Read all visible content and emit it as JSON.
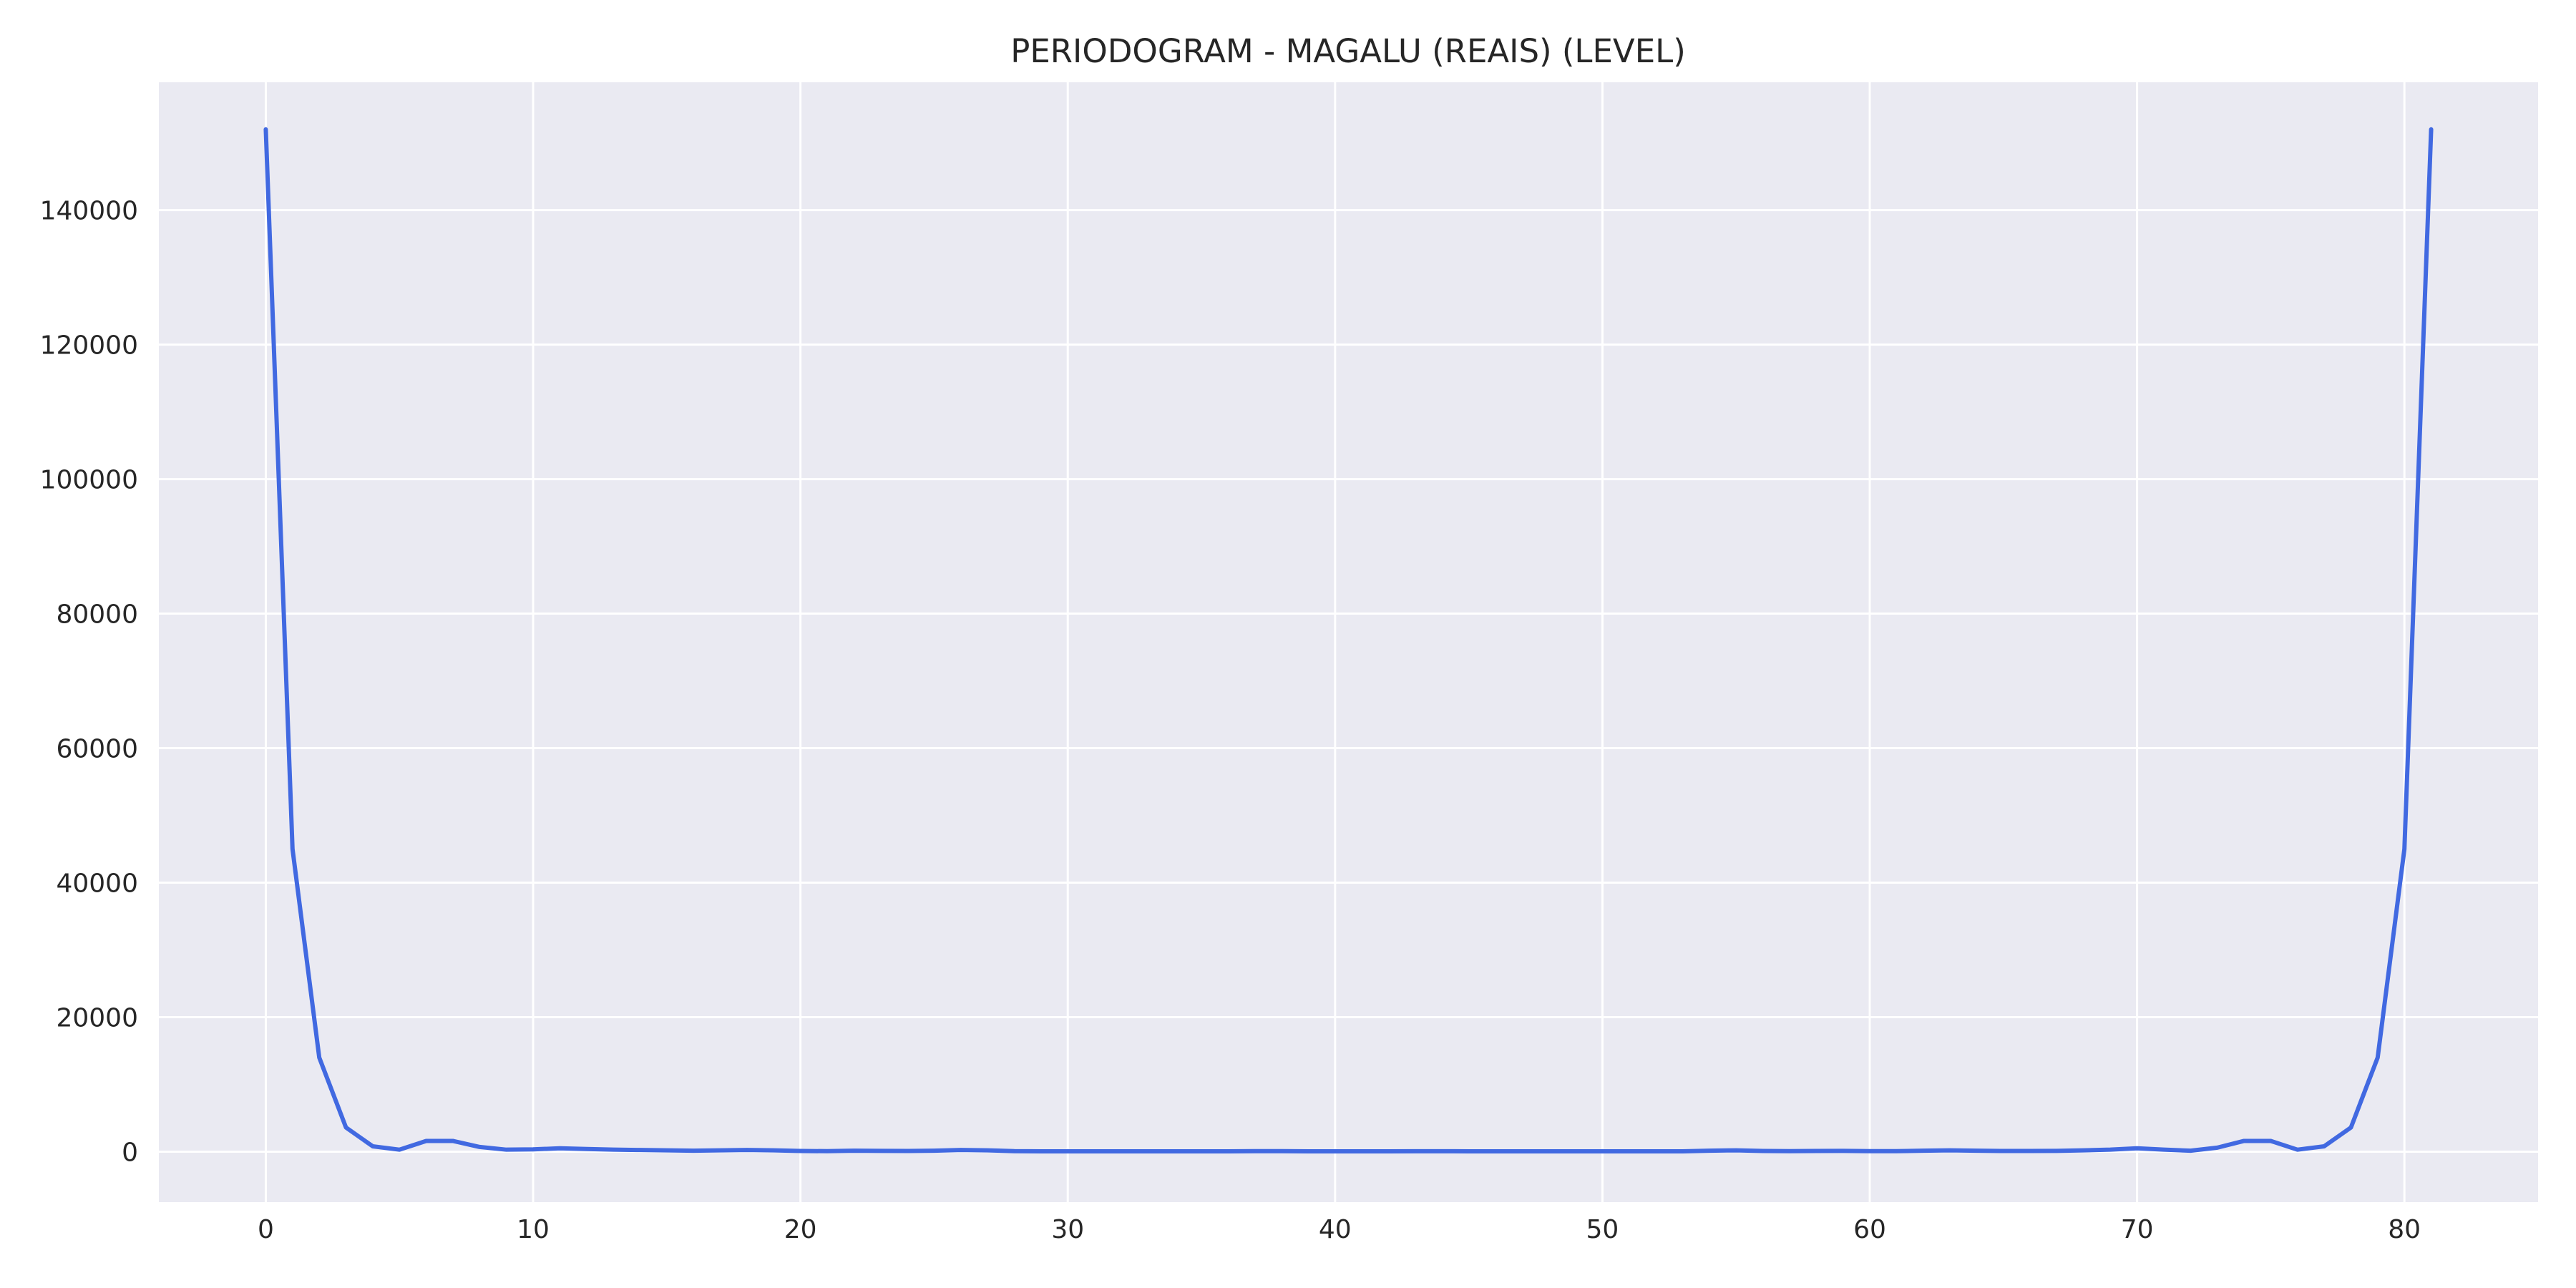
{
  "chart_data": {
    "type": "line",
    "title": "PERIODOGRAM - MAGALU (REAIS) (LEVEL)",
    "xlabel": "",
    "ylabel": "",
    "xlim": [
      -4,
      85
    ],
    "ylim": [
      -7500,
      159000
    ],
    "xticks": [
      0,
      10,
      20,
      30,
      40,
      50,
      60,
      70,
      80
    ],
    "yticks": [
      0,
      20000,
      40000,
      60000,
      80000,
      100000,
      120000,
      140000
    ],
    "grid": true,
    "background_color": "#EAEAF2",
    "grid_color": "#FFFFFF",
    "series": [
      {
        "color": "#4169E1",
        "x": [
          0,
          1,
          2,
          3,
          4,
          5,
          6,
          7,
          8,
          9,
          10,
          11,
          12,
          13,
          14,
          15,
          16,
          17,
          18,
          19,
          20,
          21,
          22,
          23,
          24,
          25,
          26,
          27,
          28,
          29,
          30,
          31,
          32,
          33,
          34,
          35,
          36,
          37,
          38,
          39,
          40,
          41,
          42,
          43,
          44,
          45,
          46,
          47,
          48,
          49,
          50,
          51,
          52,
          53,
          54,
          55,
          56,
          57,
          58,
          59,
          60,
          61,
          62,
          63,
          64,
          65,
          66,
          67,
          68,
          69,
          70,
          71,
          72,
          73,
          74,
          75,
          76,
          77,
          78,
          79,
          80,
          81
        ],
        "values": [
          152000,
          45000,
          14000,
          3600,
          800,
          300,
          1600,
          1600,
          700,
          300,
          350,
          500,
          400,
          300,
          250,
          200,
          150,
          200,
          250,
          200,
          100,
          80,
          150,
          120,
          100,
          150,
          250,
          200,
          80,
          60,
          60,
          50,
          50,
          60,
          60,
          50,
          60,
          80,
          80,
          60,
          60,
          60,
          60,
          70,
          70,
          60,
          60,
          60,
          60,
          60,
          60,
          50,
          50,
          50,
          150,
          200,
          100,
          80,
          100,
          120,
          80,
          80,
          150,
          200,
          150,
          100,
          100,
          120,
          200,
          300,
          500,
          300,
          150,
          600,
          1600,
          1600,
          300,
          800,
          3600,
          14000,
          45000,
          152000
        ]
      }
    ]
  }
}
